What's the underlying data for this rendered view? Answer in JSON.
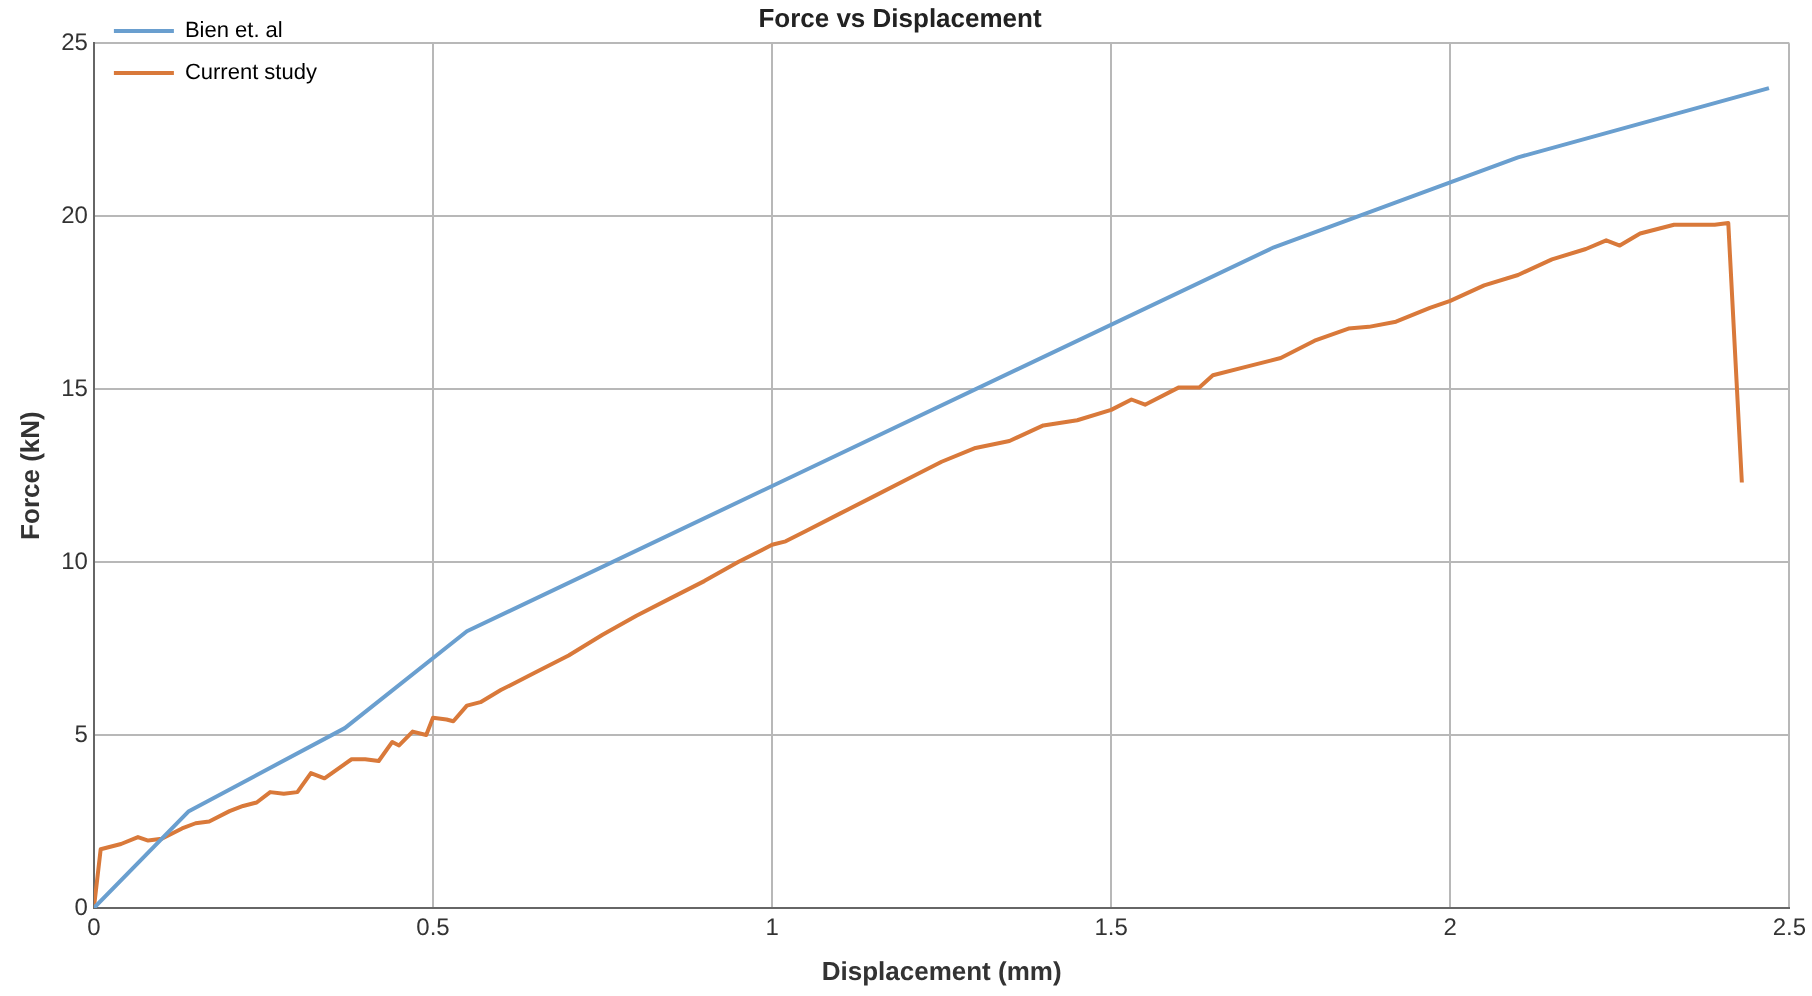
{
  "chart_data": {
    "type": "line",
    "title": "Force vs Displacement",
    "xlabel": "Displacement (mm)",
    "ylabel": "Force (kN)",
    "xlim": [
      0,
      2.5
    ],
    "xticks": [
      0,
      0.5,
      1,
      1.5,
      2,
      2.5
    ],
    "ylim": [
      0,
      25
    ],
    "yticks": [
      0,
      5,
      10,
      15,
      20,
      25
    ],
    "grid": true,
    "legend": "top left",
    "marker": "none",
    "line_style": "solid",
    "series": [
      {
        "name": "Bien et. al",
        "color": "#6a9fcf",
        "x": [
          0,
          0.14,
          0.37,
          0.55,
          1.74,
          2.1,
          2.47
        ],
        "values": [
          0,
          2.8,
          5.2,
          8.0,
          19.1,
          21.7,
          23.7
        ]
      },
      {
        "name": "Current study",
        "color": "#d9793a",
        "x": [
          0,
          0.01,
          0.04,
          0.065,
          0.08,
          0.1,
          0.13,
          0.15,
          0.17,
          0.2,
          0.22,
          0.24,
          0.26,
          0.28,
          0.3,
          0.32,
          0.34,
          0.38,
          0.4,
          0.42,
          0.44,
          0.45,
          0.47,
          0.49,
          0.5,
          0.52,
          0.53,
          0.55,
          0.57,
          0.6,
          0.65,
          0.7,
          0.75,
          0.8,
          0.85,
          0.9,
          0.95,
          1.0,
          1.02,
          1.05,
          1.1,
          1.15,
          1.2,
          1.25,
          1.3,
          1.35,
          1.4,
          1.45,
          1.5,
          1.53,
          1.55,
          1.6,
          1.63,
          1.65,
          1.7,
          1.75,
          1.8,
          1.85,
          1.88,
          1.92,
          1.97,
          2.0,
          2.05,
          2.1,
          2.15,
          2.2,
          2.23,
          2.25,
          2.28,
          2.33,
          2.39,
          2.41,
          2.43
        ],
        "values": [
          0,
          1.7,
          1.85,
          2.05,
          1.95,
          2.0,
          2.3,
          2.45,
          2.5,
          2.8,
          2.95,
          3.05,
          3.35,
          3.3,
          3.35,
          3.9,
          3.75,
          4.3,
          4.3,
          4.25,
          4.8,
          4.7,
          5.1,
          5.0,
          5.5,
          5.45,
          5.4,
          5.85,
          5.95,
          6.3,
          6.8,
          7.3,
          7.9,
          8.45,
          8.95,
          9.45,
          10.0,
          10.5,
          10.6,
          10.9,
          11.4,
          11.9,
          12.4,
          12.9,
          13.3,
          13.5,
          13.95,
          14.1,
          14.4,
          14.7,
          14.55,
          15.05,
          15.05,
          15.4,
          15.65,
          15.9,
          16.4,
          16.75,
          16.8,
          16.95,
          17.35,
          17.55,
          18.0,
          18.3,
          18.75,
          19.05,
          19.3,
          19.15,
          19.5,
          19.75,
          19.75,
          19.8,
          12.3
        ]
      }
    ]
  }
}
